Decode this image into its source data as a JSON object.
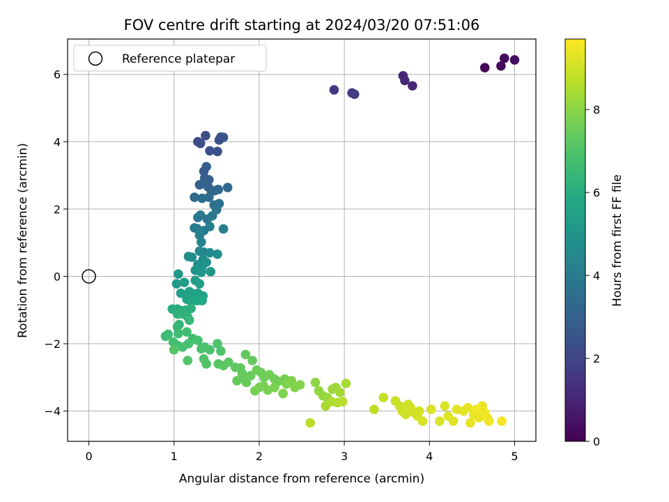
{
  "chart_data": {
    "type": "scatter",
    "title": "FOV centre drift starting at 2024/03/20 07:51:06",
    "xlabel": "Angular distance from reference (arcmin)",
    "ylabel": "Rotation from reference (arcmin)",
    "xlim": [
      -0.25,
      5.25
    ],
    "ylim": [
      -4.9,
      7.05
    ],
    "x_ticks": [
      0,
      1,
      2,
      3,
      4,
      5
    ],
    "y_ticks": [
      -4,
      -2,
      0,
      2,
      4,
      6
    ],
    "grid": true,
    "legend": {
      "position": "top-left",
      "entries": [
        "Reference platepar"
      ]
    },
    "reference_point": {
      "x": 0,
      "y": 0
    },
    "colorbar": {
      "label": "Hours from first FF file",
      "colormap": "viridis",
      "range": [
        0,
        9.7
      ],
      "ticks": [
        0,
        2,
        4,
        6,
        8
      ]
    },
    "points": [
      [
        4.65,
        6.2,
        0.15
      ],
      [
        4.84,
        6.25,
        0.25
      ],
      [
        4.88,
        6.48,
        0.3
      ],
      [
        5.0,
        6.43,
        0.35
      ],
      [
        3.69,
        5.96,
        1.0
      ],
      [
        3.71,
        5.82,
        1.05
      ],
      [
        3.8,
        5.66,
        1.1
      ],
      [
        2.88,
        5.54,
        1.6
      ],
      [
        3.09,
        5.45,
        1.65
      ],
      [
        3.12,
        5.41,
        1.7
      ],
      [
        1.28,
        4.0,
        2.2
      ],
      [
        1.31,
        3.95,
        2.25
      ],
      [
        1.37,
        4.18,
        2.3
      ],
      [
        1.42,
        3.73,
        2.35
      ],
      [
        1.51,
        3.71,
        2.4
      ],
      [
        1.53,
        4.05,
        2.45
      ],
      [
        1.55,
        4.14,
        2.5
      ],
      [
        1.58,
        4.13,
        2.55
      ],
      [
        1.35,
        3.12,
        2.8
      ],
      [
        1.38,
        3.26,
        2.85
      ],
      [
        1.36,
        2.92,
        2.9
      ],
      [
        1.41,
        2.87,
        2.95
      ],
      [
        1.3,
        2.72,
        3.0
      ],
      [
        1.34,
        2.76,
        3.05
      ],
      [
        1.4,
        2.66,
        3.1
      ],
      [
        1.48,
        2.55,
        3.15
      ],
      [
        1.44,
        2.52,
        3.2
      ],
      [
        1.52,
        2.58,
        3.25
      ],
      [
        1.63,
        2.64,
        3.3
      ],
      [
        1.24,
        2.35,
        3.35
      ],
      [
        1.33,
        2.32,
        3.4
      ],
      [
        1.41,
        2.35,
        3.45
      ],
      [
        1.47,
        2.12,
        3.6
      ],
      [
        1.53,
        2.16,
        3.65
      ],
      [
        1.5,
        1.98,
        3.7
      ],
      [
        1.45,
        1.8,
        3.75
      ],
      [
        1.39,
        1.7,
        3.8
      ],
      [
        1.28,
        1.75,
        3.85
      ],
      [
        1.31,
        1.82,
        3.9
      ],
      [
        1.24,
        1.44,
        3.95
      ],
      [
        1.27,
        1.42,
        4.0
      ],
      [
        1.35,
        1.36,
        4.05
      ],
      [
        1.42,
        1.48,
        4.1
      ],
      [
        1.58,
        1.41,
        4.15
      ],
      [
        1.3,
        1.22,
        4.2
      ],
      [
        1.32,
        1.02,
        4.25
      ],
      [
        1.3,
        0.75,
        4.5
      ],
      [
        1.35,
        0.72,
        4.55
      ],
      [
        1.42,
        0.7,
        4.6
      ],
      [
        1.51,
        0.66,
        4.65
      ],
      [
        1.17,
        0.59,
        4.7
      ],
      [
        1.21,
        0.57,
        4.75
      ],
      [
        1.34,
        0.5,
        4.8
      ],
      [
        1.38,
        0.42,
        4.85
      ],
      [
        1.28,
        0.35,
        4.9
      ],
      [
        1.33,
        0.28,
        4.95
      ],
      [
        1.25,
        0.18,
        5.0
      ],
      [
        1.32,
        0.12,
        5.05
      ],
      [
        1.43,
        0.14,
        5.1
      ],
      [
        1.05,
        0.07,
        5.2
      ],
      [
        1.03,
        -0.22,
        5.25
      ],
      [
        1.12,
        -0.18,
        5.3
      ],
      [
        1.25,
        -0.12,
        5.35
      ],
      [
        1.3,
        -0.22,
        5.4
      ],
      [
        1.08,
        -0.5,
        5.45
      ],
      [
        1.18,
        -0.45,
        5.5
      ],
      [
        1.22,
        -0.52,
        5.55
      ],
      [
        1.28,
        -0.5,
        5.6
      ],
      [
        1.34,
        -0.58,
        5.65
      ],
      [
        1.15,
        -0.68,
        5.7
      ],
      [
        1.2,
        -0.75,
        5.75
      ],
      [
        1.27,
        -0.72,
        5.8
      ],
      [
        1.33,
        -0.72,
        5.85
      ],
      [
        0.98,
        -0.97,
        5.95
      ],
      [
        1.04,
        -0.97,
        6.0
      ],
      [
        1.09,
        -1.02,
        6.05
      ],
      [
        1.14,
        -1.0,
        6.1
      ],
      [
        1.2,
        -0.95,
        6.15
      ],
      [
        1.04,
        -1.12,
        6.2
      ],
      [
        1.1,
        -1.12,
        6.25
      ],
      [
        1.16,
        -1.2,
        6.3
      ],
      [
        1.06,
        -1.43,
        6.35
      ],
      [
        1.04,
        -1.5,
        6.4
      ],
      [
        1.18,
        -1.3,
        6.45
      ],
      [
        0.9,
        -1.78,
        6.6
      ],
      [
        0.93,
        -1.72,
        6.62
      ],
      [
        1.05,
        -1.7,
        6.65
      ],
      [
        1.15,
        -1.65,
        6.7
      ],
      [
        1.22,
        -1.85,
        6.72
      ],
      [
        0.99,
        -1.95,
        6.75
      ],
      [
        1.04,
        -2.05,
        6.78
      ],
      [
        1.1,
        -2.1,
        6.8
      ],
      [
        1.17,
        -2.0,
        6.82
      ],
      [
        1.28,
        -1.9,
        6.85
      ],
      [
        1.32,
        -2.15,
        6.88
      ],
      [
        1.36,
        -2.1,
        6.9
      ],
      [
        1.42,
        -2.18,
        6.92
      ],
      [
        1.51,
        -2.0,
        6.95
      ],
      [
        1.55,
        -2.22,
        6.97
      ],
      [
        1.35,
        -2.45,
        7.0
      ],
      [
        1.38,
        -2.6,
        7.02
      ],
      [
        1.16,
        -2.5,
        7.05
      ],
      [
        1.0,
        -2.18,
        7.07
      ],
      [
        1.52,
        -2.6,
        7.15
      ],
      [
        1.58,
        -2.65,
        7.2
      ],
      [
        1.64,
        -2.55,
        7.22
      ],
      [
        1.72,
        -2.7,
        7.25
      ],
      [
        1.78,
        -2.72,
        7.28
      ],
      [
        1.8,
        -2.88,
        7.3
      ],
      [
        1.84,
        -2.32,
        7.32
      ],
      [
        1.92,
        -2.5,
        7.35
      ],
      [
        1.74,
        -3.1,
        7.38
      ],
      [
        1.8,
        -3.0,
        7.4
      ],
      [
        1.85,
        -3.15,
        7.42
      ],
      [
        1.9,
        -2.95,
        7.45
      ],
      [
        1.97,
        -2.78,
        7.5
      ],
      [
        2.02,
        -2.85,
        7.52
      ],
      [
        2.06,
        -3.0,
        7.55
      ],
      [
        2.12,
        -2.92,
        7.58
      ],
      [
        2.18,
        -3.05,
        7.6
      ],
      [
        2.22,
        -3.12,
        7.62
      ],
      [
        2.3,
        -3.05,
        7.65
      ],
      [
        1.95,
        -3.4,
        7.68
      ],
      [
        2.0,
        -3.3,
        7.7
      ],
      [
        2.05,
        -3.25,
        7.72
      ],
      [
        2.1,
        -3.38,
        7.75
      ],
      [
        2.18,
        -3.3,
        7.78
      ],
      [
        2.28,
        -3.48,
        7.8
      ],
      [
        2.32,
        -3.2,
        7.82
      ],
      [
        2.38,
        -3.1,
        7.85
      ],
      [
        2.42,
        -3.3,
        7.88
      ],
      [
        2.48,
        -3.22,
        7.9
      ],
      [
        2.66,
        -3.15,
        8.05
      ],
      [
        2.7,
        -3.4,
        8.1
      ],
      [
        2.75,
        -3.55,
        8.15
      ],
      [
        2.8,
        -3.6,
        8.2
      ],
      [
        2.86,
        -3.35,
        8.25
      ],
      [
        2.9,
        -3.3,
        8.3
      ],
      [
        2.95,
        -3.45,
        8.35
      ],
      [
        3.02,
        -3.18,
        8.4
      ],
      [
        2.78,
        -3.85,
        8.45
      ],
      [
        2.85,
        -3.72,
        8.5
      ],
      [
        2.92,
        -3.75,
        8.55
      ],
      [
        2.98,
        -3.72,
        8.6
      ],
      [
        2.6,
        -4.35,
        8.65
      ],
      [
        3.35,
        -3.95,
        8.7
      ],
      [
        3.46,
        -3.6,
        8.85
      ],
      [
        3.6,
        -3.7,
        8.9
      ],
      [
        3.65,
        -3.85,
        8.92
      ],
      [
        3.68,
        -4.0,
        8.95
      ],
      [
        3.72,
        -4.1,
        8.98
      ],
      [
        3.75,
        -3.8,
        9.0
      ],
      [
        3.78,
        -3.9,
        9.02
      ],
      [
        3.82,
        -4.05,
        9.05
      ],
      [
        3.86,
        -4.15,
        9.08
      ],
      [
        3.88,
        -4.0,
        9.1
      ],
      [
        3.92,
        -4.3,
        9.12
      ],
      [
        4.02,
        -3.95,
        9.15
      ],
      [
        4.12,
        -4.3,
        9.18
      ],
      [
        4.18,
        -3.85,
        9.2
      ],
      [
        4.22,
        -4.15,
        9.22
      ],
      [
        4.28,
        -4.3,
        9.25
      ],
      [
        4.32,
        -3.95,
        9.28
      ],
      [
        4.4,
        -4.0,
        9.3
      ],
      [
        4.45,
        -3.9,
        9.32
      ],
      [
        4.48,
        -4.35,
        9.35
      ],
      [
        4.52,
        -4.1,
        9.38
      ],
      [
        4.58,
        -4.2,
        9.4
      ],
      [
        4.62,
        -3.85,
        9.42
      ],
      [
        4.65,
        -4.05,
        9.45
      ],
      [
        4.68,
        -4.2,
        9.48
      ],
      [
        4.7,
        -4.3,
        9.5
      ],
      [
        4.55,
        -3.95,
        9.52
      ],
      [
        4.85,
        -4.3,
        9.55
      ]
    ]
  }
}
